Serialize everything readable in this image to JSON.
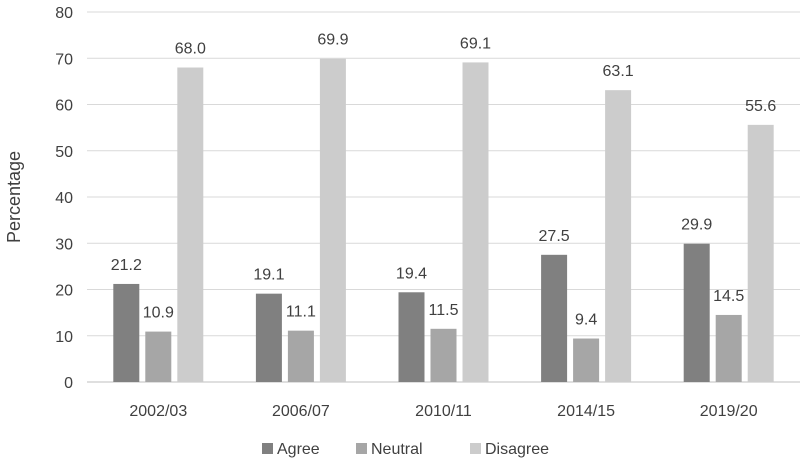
{
  "chart_data": {
    "type": "bar",
    "categories": [
      "2002/03",
      "2006/07",
      "2010/11",
      "2014/15",
      "2019/20"
    ],
    "series": [
      {
        "name": "Agree",
        "values": [
          21.2,
          19.1,
          19.4,
          27.5,
          29.9
        ],
        "color": "#808080"
      },
      {
        "name": "Neutral",
        "values": [
          10.9,
          11.1,
          11.5,
          9.4,
          14.5
        ],
        "color": "#a6a6a6"
      },
      {
        "name": "Disagree",
        "values": [
          68.0,
          69.9,
          69.1,
          63.1,
          55.6
        ],
        "color": "#cccccc"
      }
    ],
    "title": "",
    "xlabel": "",
    "ylabel": "Percentage",
    "ylim": [
      0,
      80
    ],
    "yticks": [
      0,
      10,
      20,
      30,
      40,
      50,
      60,
      70,
      80
    ],
    "grid": true,
    "legend_position": "bottom",
    "data_label_format": "one-decimal"
  }
}
